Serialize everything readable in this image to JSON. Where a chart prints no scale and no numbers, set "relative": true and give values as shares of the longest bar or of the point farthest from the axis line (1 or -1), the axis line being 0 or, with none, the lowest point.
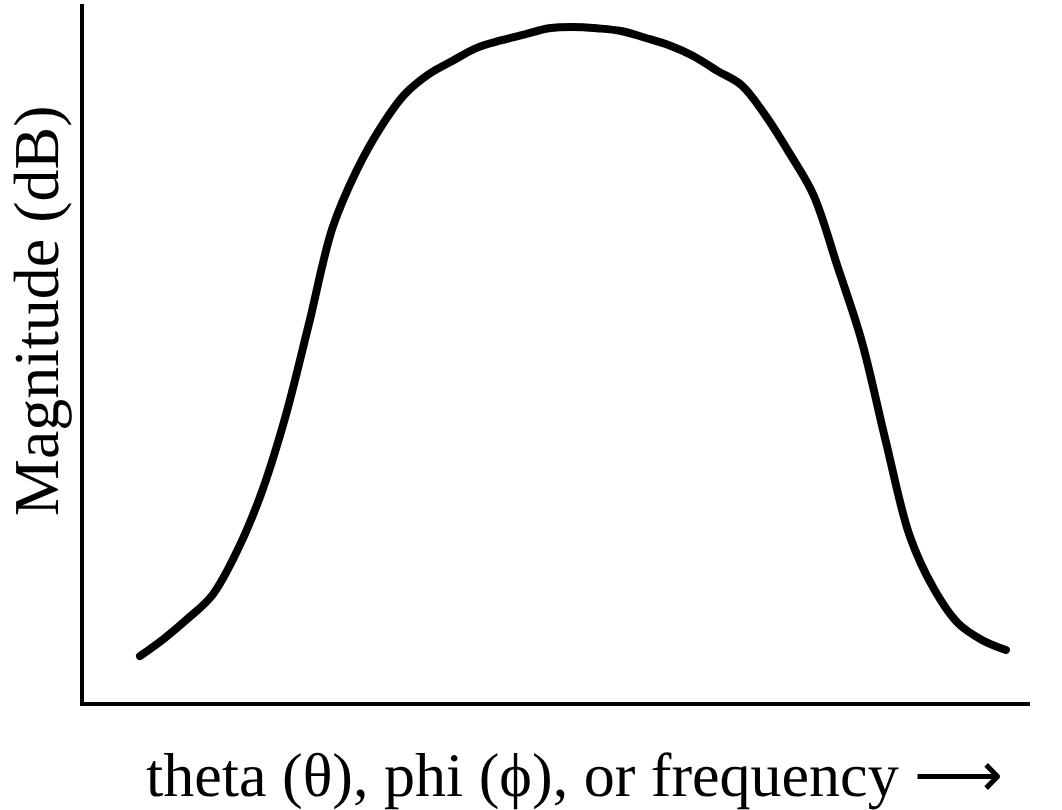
{
  "chart_data": {
    "type": "line",
    "relative": true,
    "xlabel": "theta (θ), phi (ϕ), or frequency ⟶",
    "ylabel": "Magnitude (dB)",
    "categories": [
      null,
      null,
      null,
      null,
      null,
      null,
      null,
      null,
      null,
      null,
      null,
      null,
      null,
      null,
      null,
      null,
      null,
      null,
      null,
      null,
      null,
      null,
      null,
      null,
      null,
      null,
      null,
      null,
      null,
      null,
      null,
      null,
      null,
      null,
      null,
      null,
      null
    ],
    "series": [
      {
        "color": "#000000",
        "values": [
          0.068,
          0.094,
          0.124,
          0.158,
          0.221,
          0.305,
          0.417,
          0.557,
          0.702,
          0.787,
          0.851,
          0.9,
          0.93,
          0.95,
          0.969,
          0.98,
          0.989,
          0.998,
          1.0,
          0.998,
          0.994,
          0.984,
          0.973,
          0.957,
          0.935,
          0.914,
          0.869,
          0.813,
          0.751,
          0.645,
          0.535,
          0.387,
          0.246,
          0.168,
          0.117,
          0.092,
          0.077
        ]
      }
    ],
    "marker": "none",
    "line_style": "solid"
  }
}
